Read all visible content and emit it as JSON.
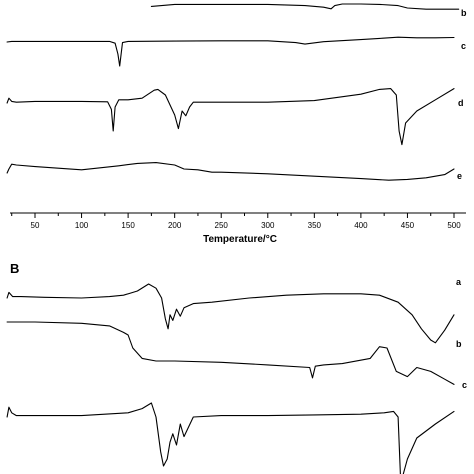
{
  "chart_data": [
    {
      "type": "line",
      "panel_label": "",
      "xlabel": "Temperature/°C",
      "ylabel": "",
      "x_ticks": [
        50,
        100,
        150,
        200,
        250,
        300,
        350,
        400,
        450,
        500
      ],
      "xlim": [
        20,
        505
      ],
      "grid": false,
      "series": [
        {
          "name": "b",
          "x": [
            175,
            200,
            250,
            300,
            340,
            360,
            368,
            372,
            380,
            400,
            420,
            440,
            450,
            470,
            490,
            505
          ],
          "y": [
            0.2,
            0.45,
            0.45,
            0.45,
            0.3,
            0.1,
            -0.1,
            0.3,
            0.5,
            0.5,
            0.45,
            0.3,
            0.0,
            -0.15,
            -0.15,
            -0.15
          ]
        },
        {
          "name": "c",
          "x": [
            20,
            25,
            50,
            100,
            130,
            136,
            139,
            141,
            144,
            150,
            200,
            250,
            300,
            330,
            340,
            360,
            400,
            420,
            440,
            460,
            480,
            500
          ],
          "y": [
            0.0,
            0.1,
            0.1,
            0.1,
            0.1,
            -0.2,
            -2.0,
            -4.0,
            -0.1,
            0.1,
            0.15,
            0.2,
            0.2,
            -0.1,
            -0.35,
            0.05,
            0.4,
            0.6,
            0.8,
            0.7,
            0.7,
            0.75
          ]
        },
        {
          "name": "d",
          "x": [
            20,
            22,
            25,
            30,
            50,
            100,
            128,
            132,
            134,
            136,
            140,
            150,
            165,
            178,
            182,
            190,
            200,
            204,
            208,
            212,
            216,
            220,
            240,
            300,
            350,
            400,
            420,
            432,
            438,
            441,
            444,
            448,
            460,
            480,
            500
          ],
          "y": [
            0.0,
            0.6,
            0.2,
            0.1,
            0.2,
            0.2,
            0.15,
            -0.8,
            -3.5,
            -0.5,
            0.4,
            0.4,
            0.6,
            1.6,
            1.7,
            1.0,
            -1.5,
            -3.2,
            -1.0,
            -1.6,
            -0.5,
            0.1,
            0.1,
            0.1,
            0.3,
            1.1,
            1.7,
            1.8,
            1.0,
            -3.5,
            -5.2,
            -2.5,
            -1.0,
            0.4,
            1.8
          ]
        },
        {
          "name": "e",
          "x": [
            20,
            22,
            25,
            30,
            50,
            100,
            140,
            160,
            180,
            200,
            210,
            225,
            240,
            250,
            300,
            350,
            400,
            430,
            450,
            470,
            490,
            500
          ],
          "y": [
            -0.5,
            0.0,
            0.6,
            0.5,
            0.3,
            -0.1,
            0.4,
            0.7,
            0.8,
            0.5,
            0.0,
            -0.1,
            -0.4,
            -0.4,
            -0.6,
            -0.9,
            -1.2,
            -1.4,
            -1.3,
            -1.1,
            -0.7,
            0.0
          ]
        }
      ]
    },
    {
      "type": "line",
      "panel_label": "B",
      "xlabel": "",
      "ylabel": "",
      "xlim": [
        20,
        505
      ],
      "grid": false,
      "series": [
        {
          "name": "a",
          "x": [
            20,
            22,
            26,
            35,
            60,
            100,
            130,
            145,
            160,
            172,
            180,
            186,
            190,
            193,
            195,
            198,
            202,
            206,
            210,
            220,
            240,
            280,
            320,
            360,
            400,
            420,
            440,
            455,
            465,
            475,
            480,
            490,
            500
          ],
          "y": [
            0.0,
            0.4,
            0.1,
            0.1,
            0.05,
            0.0,
            0.1,
            0.2,
            0.5,
            1.0,
            0.7,
            0.0,
            -1.5,
            -2.2,
            -1.2,
            -1.6,
            -0.8,
            -1.3,
            -0.7,
            -0.4,
            -0.3,
            0.0,
            0.2,
            0.3,
            0.3,
            0.2,
            -0.3,
            -1.2,
            -2.2,
            -3.0,
            -3.2,
            -2.3,
            -1.2
          ]
        },
        {
          "name": "b",
          "x": [
            20,
            50,
            100,
            130,
            145,
            150,
            155,
            165,
            180,
            200,
            250,
            300,
            345,
            348,
            351,
            360,
            380,
            410,
            420,
            428,
            438,
            450,
            460,
            475,
            490,
            500
          ],
          "y": [
            0.0,
            0.0,
            -0.1,
            -0.3,
            -0.8,
            -1.0,
            -2.0,
            -2.8,
            -3.0,
            -3.0,
            -3.1,
            -3.3,
            -3.5,
            -4.3,
            -3.4,
            -3.3,
            -3.2,
            -2.8,
            -1.9,
            -2.0,
            -3.8,
            -4.2,
            -3.5,
            -3.8,
            -4.4,
            -4.8
          ]
        },
        {
          "name": "c",
          "x": [
            20,
            22,
            25,
            30,
            50,
            100,
            150,
            165,
            175,
            180,
            185,
            188,
            192,
            195,
            198,
            202,
            206,
            210,
            220,
            250,
            300,
            350,
            400,
            425,
            435,
            440,
            443,
            445,
            450,
            460,
            480,
            500
          ],
          "y": [
            0.0,
            0.7,
            0.3,
            0.1,
            0.1,
            0.1,
            0.3,
            0.6,
            1.0,
            0.0,
            -2.5,
            -3.5,
            -3.0,
            -1.8,
            -1.2,
            -2.0,
            -0.5,
            -1.4,
            0.0,
            0.1,
            0.1,
            0.15,
            0.2,
            0.3,
            0.4,
            0.0,
            -5.0,
            -4.2,
            -3.0,
            -1.5,
            -0.5,
            0.4
          ]
        }
      ]
    }
  ],
  "panel_a_labels": {
    "b": "b",
    "c": "c",
    "d": "d",
    "e": "e"
  },
  "panel_b_labels": {
    "a": "a",
    "b": "b",
    "c": "c"
  }
}
